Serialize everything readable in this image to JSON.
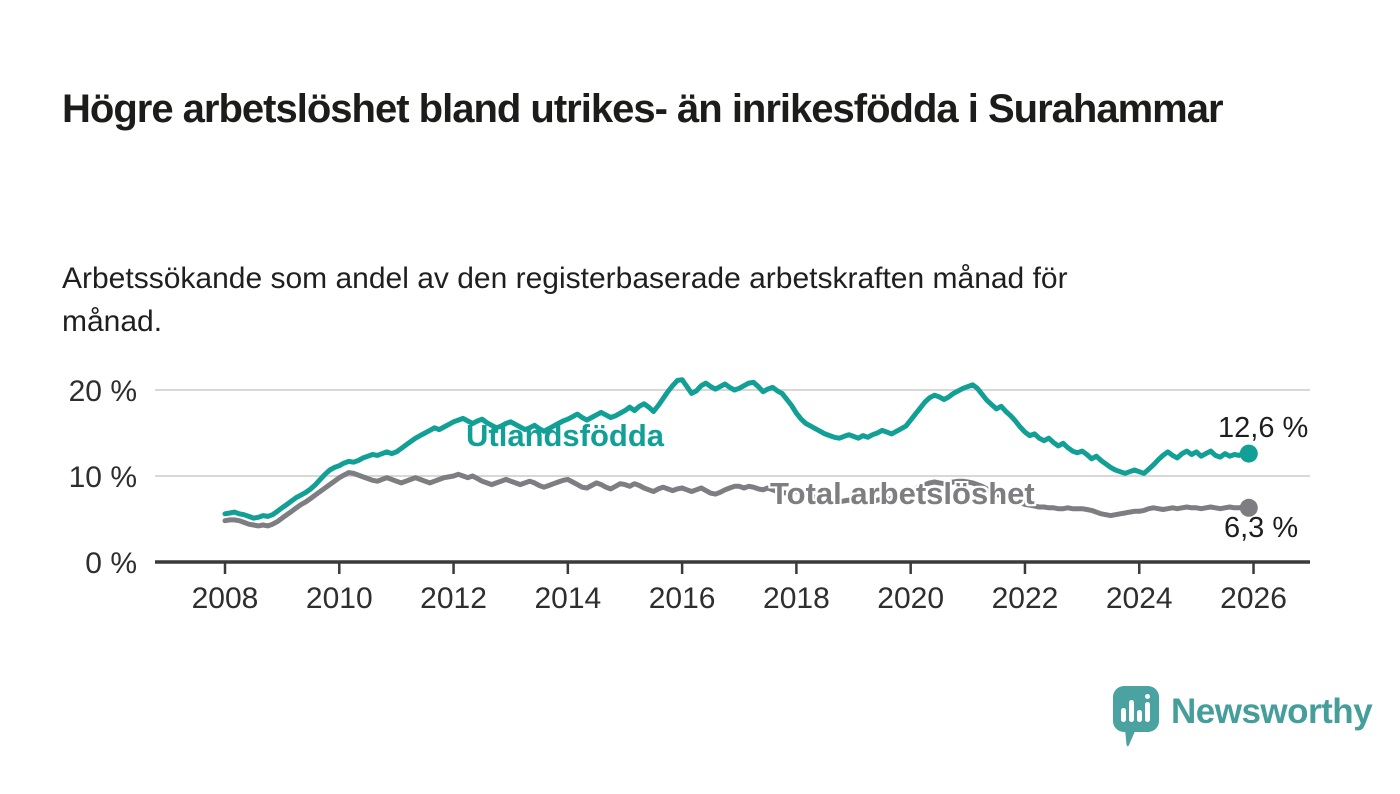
{
  "header": {
    "title": "Högre arbetslöshet bland utrikes- än inrikesfödda i Surahammar",
    "subtitle": "Arbetssökande som andel av den registerbaserade arbetskraften månad för månad."
  },
  "chart_data": {
    "type": "line",
    "title": "Högre arbetslöshet bland utrikes- än inrikesfödda i Surahammar",
    "xlabel": "",
    "ylabel": "",
    "unit": "%",
    "ylim": [
      0,
      22
    ],
    "grid": "horizontal",
    "legend": "inline-labels",
    "x_start_year": 2008,
    "points_per_month": 1,
    "x_range": "2008-01 to 2025-12 (monthly)",
    "yticks": [
      "0 %",
      "10 %",
      "20 %"
    ],
    "xticks": [
      "2008",
      "2010",
      "2012",
      "2014",
      "2016",
      "2018",
      "2020",
      "2022",
      "2024",
      "2026"
    ],
    "colors": {
      "utlandsfodda": "#12A096",
      "total": "#7D7D82",
      "gridline": "#D8D8D8",
      "axis": "#3A3A3A"
    },
    "series": [
      {
        "name": "Utlandsfödda",
        "color": "#12A096",
        "end_label": "12,6 %",
        "end_value": 12.6,
        "values": [
          5.6,
          5.7,
          5.8,
          5.6,
          5.5,
          5.3,
          5.1,
          5.2,
          5.4,
          5.3,
          5.5,
          5.9,
          6.3,
          6.7,
          7.1,
          7.5,
          7.8,
          8.1,
          8.5,
          9.0,
          9.6,
          10.2,
          10.7,
          11.0,
          11.2,
          11.5,
          11.7,
          11.6,
          11.8,
          12.1,
          12.3,
          12.5,
          12.4,
          12.6,
          12.8,
          12.6,
          12.8,
          13.2,
          13.6,
          14.0,
          14.4,
          14.7,
          15.0,
          15.3,
          15.6,
          15.4,
          15.7,
          16.0,
          16.3,
          16.5,
          16.7,
          16.4,
          16.1,
          16.4,
          16.6,
          16.2,
          15.9,
          15.6,
          15.8,
          16.1,
          16.3,
          16.0,
          15.7,
          15.4,
          15.6,
          15.9,
          15.5,
          15.2,
          15.5,
          15.8,
          16.1,
          16.4,
          16.6,
          16.9,
          17.2,
          16.8,
          16.5,
          16.8,
          17.1,
          17.4,
          17.1,
          16.8,
          17.0,
          17.3,
          17.6,
          18.0,
          17.6,
          18.1,
          18.4,
          18.0,
          17.5,
          18.2,
          19.0,
          19.8,
          20.5,
          21.1,
          21.2,
          20.4,
          19.6,
          19.9,
          20.5,
          20.8,
          20.4,
          20.1,
          20.4,
          20.7,
          20.3,
          20.0,
          20.2,
          20.5,
          20.8,
          20.9,
          20.4,
          19.8,
          20.1,
          20.3,
          19.9,
          19.6,
          18.9,
          18.2,
          17.3,
          16.6,
          16.1,
          15.8,
          15.5,
          15.2,
          14.9,
          14.7,
          14.5,
          14.4,
          14.6,
          14.8,
          14.6,
          14.4,
          14.7,
          14.5,
          14.8,
          15.0,
          15.3,
          15.1,
          14.9,
          15.2,
          15.5,
          15.8,
          16.5,
          17.2,
          17.9,
          18.6,
          19.1,
          19.4,
          19.2,
          18.9,
          19.2,
          19.6,
          19.9,
          20.2,
          20.4,
          20.6,
          20.2,
          19.5,
          18.8,
          18.3,
          17.8,
          18.1,
          17.5,
          17.0,
          16.4,
          15.7,
          15.1,
          14.7,
          14.9,
          14.4,
          14.1,
          14.4,
          13.9,
          13.5,
          13.8,
          13.3,
          12.9,
          12.7,
          12.9,
          12.5,
          12.0,
          12.3,
          11.8,
          11.4,
          11.0,
          10.7,
          10.5,
          10.3,
          10.5,
          10.7,
          10.5,
          10.3,
          10.8,
          11.3,
          11.9,
          12.4,
          12.8,
          12.4,
          12.1,
          12.6,
          12.9,
          12.5,
          12.8,
          12.3,
          12.6,
          12.9,
          12.4,
          12.2,
          12.6,
          12.3,
          12.5,
          12.4,
          12.7,
          12.6
        ]
      },
      {
        "name": "Total arbetslöshet",
        "color": "#7D7D82",
        "end_label": "6,3 %",
        "end_value": 6.3,
        "values": [
          4.8,
          4.9,
          4.9,
          4.8,
          4.6,
          4.4,
          4.3,
          4.2,
          4.3,
          4.2,
          4.4,
          4.7,
          5.1,
          5.5,
          5.9,
          6.3,
          6.7,
          7.0,
          7.4,
          7.8,
          8.2,
          8.6,
          9.0,
          9.4,
          9.8,
          10.1,
          10.4,
          10.3,
          10.1,
          9.9,
          9.7,
          9.5,
          9.4,
          9.6,
          9.8,
          9.6,
          9.4,
          9.2,
          9.4,
          9.6,
          9.8,
          9.6,
          9.4,
          9.2,
          9.4,
          9.6,
          9.8,
          9.9,
          10.0,
          10.2,
          10.0,
          9.8,
          10.0,
          9.7,
          9.4,
          9.2,
          9.0,
          9.2,
          9.4,
          9.6,
          9.4,
          9.2,
          9.0,
          9.2,
          9.4,
          9.2,
          8.9,
          8.7,
          8.9,
          9.1,
          9.3,
          9.5,
          9.6,
          9.3,
          9.0,
          8.7,
          8.6,
          8.9,
          9.2,
          9.0,
          8.7,
          8.5,
          8.8,
          9.1,
          9.0,
          8.8,
          9.1,
          8.9,
          8.6,
          8.4,
          8.2,
          8.5,
          8.7,
          8.5,
          8.3,
          8.5,
          8.6,
          8.4,
          8.2,
          8.4,
          8.6,
          8.3,
          8.0,
          7.9,
          8.1,
          8.4,
          8.6,
          8.8,
          8.8,
          8.6,
          8.8,
          8.7,
          8.5,
          8.4,
          8.6,
          8.4,
          8.2,
          8.1,
          8.0,
          8.2,
          8.2,
          8.0,
          7.8,
          7.7,
          7.5,
          7.4,
          7.3,
          7.2,
          7.1,
          7.0,
          7.1,
          7.2,
          7.0,
          6.9,
          7.0,
          7.1,
          7.0,
          7.2,
          7.3,
          7.2,
          7.4,
          7.5,
          7.7,
          7.9,
          8.2,
          8.5,
          8.8,
          9.0,
          9.2,
          9.3,
          9.2,
          9.1,
          9.2,
          9.3,
          9.4,
          9.4,
          9.3,
          9.2,
          9.0,
          8.8,
          8.5,
          8.2,
          7.9,
          7.7,
          7.5,
          7.3,
          7.1,
          6.9,
          6.7,
          6.6,
          6.5,
          6.4,
          6.4,
          6.3,
          6.3,
          6.2,
          6.2,
          6.3,
          6.2,
          6.2,
          6.2,
          6.1,
          6.0,
          5.8,
          5.6,
          5.5,
          5.4,
          5.5,
          5.6,
          5.7,
          5.8,
          5.9,
          5.9,
          6.0,
          6.2,
          6.3,
          6.2,
          6.1,
          6.2,
          6.3,
          6.2,
          6.3,
          6.4,
          6.3,
          6.3,
          6.2,
          6.3,
          6.4,
          6.3,
          6.2,
          6.3,
          6.4,
          6.3,
          6.3,
          6.4,
          6.3
        ]
      }
    ]
  },
  "footer": {
    "brand": "Newsworthy",
    "brand_color": "#459E9B",
    "logo_icon": "speech-bubble-bar-chart-icon"
  }
}
